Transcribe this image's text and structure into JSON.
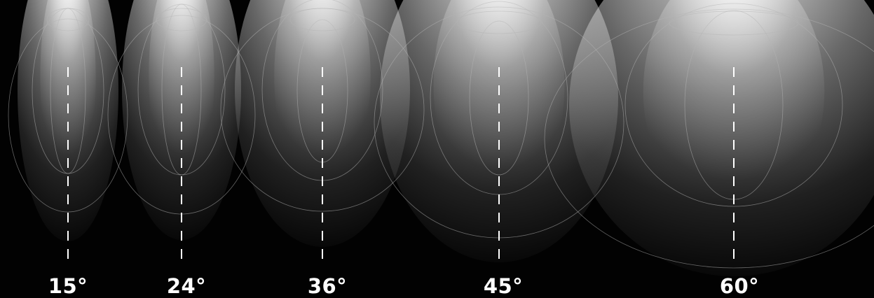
{
  "beams": [
    {
      "id": "15",
      "label": "15°"
    },
    {
      "id": "24",
      "label": "24°"
    },
    {
      "id": "36",
      "label": "36°"
    },
    {
      "id": "45",
      "label": "45°"
    },
    {
      "id": "60",
      "label": "60°"
    }
  ],
  "colors": {
    "background": "#020202",
    "beam_light": "#ffffff",
    "outline": "#b4b4b4",
    "axis_dash": "#ffffff",
    "label": "#ffffff"
  }
}
